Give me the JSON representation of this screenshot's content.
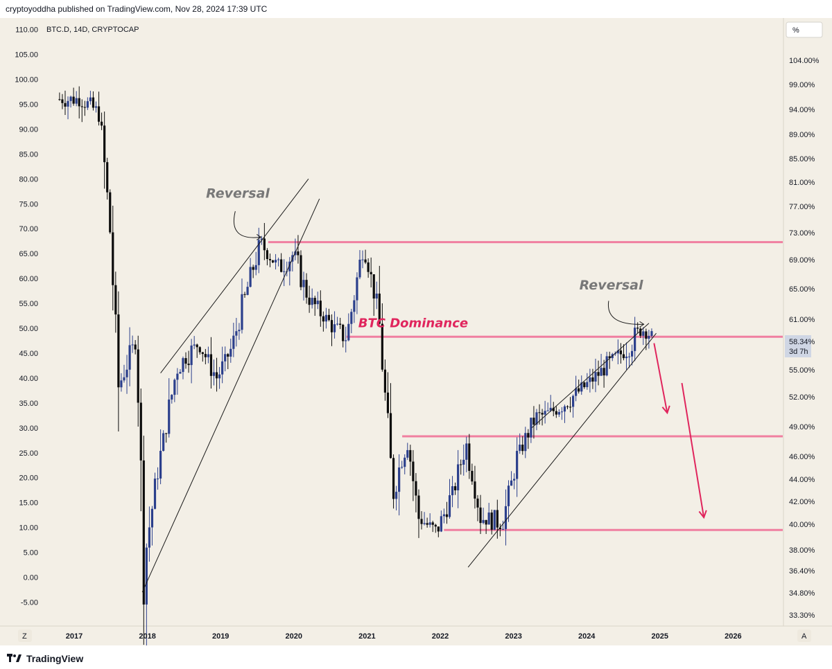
{
  "header": {
    "published": "cryptoyoddha published on TradingView.com, Nov 28, 2024 17:39 UTC"
  },
  "footer": {
    "brand": "TradingView"
  },
  "buttons": {
    "percent": "%",
    "zoom": "Z",
    "auto": "A"
  },
  "colors": {
    "background": "#f3efe6",
    "up_candle": "#2b3f8c",
    "down_candle": "#0b0b0b",
    "level_line": "#f07fa0",
    "annotation_gray": "#787878",
    "annotation_pink": "#e0255d",
    "price_tag": "#cfd6e4"
  },
  "chart_data": {
    "type": "candlestick",
    "title": "BTC.D, 14D, CRYPTOCAP",
    "x_ticks": [
      "2017",
      "2018",
      "2019",
      "2020",
      "2021",
      "2022",
      "2023",
      "2024",
      "2025",
      "2026"
    ],
    "y_left": {
      "range": [
        -8,
        112
      ],
      "ticks": [
        "-5.00",
        "0.00",
        "5.00",
        "10.00",
        "15.00",
        "20.00",
        "25.00",
        "30.00",
        "35.00",
        "40.00",
        "45.00",
        "50.00",
        "55.00",
        "60.00",
        "65.00",
        "70.00",
        "75.00",
        "80.00",
        "85.00",
        "90.00",
        "95.00",
        "100.00",
        "105.00",
        "110.00"
      ]
    },
    "y_right": {
      "ticks": [
        "104.00%",
        "99.00%",
        "94.00%",
        "89.00%",
        "85.00%",
        "81.00%",
        "77.00%",
        "73.00%",
        "69.00%",
        "65.00%",
        "61.00%",
        "55.00%",
        "52.00%",
        "49.00%",
        "46.00%",
        "44.00%",
        "42.00%",
        "40.00%",
        "38.00%",
        "36.40%",
        "34.80%",
        "33.30%"
      ]
    },
    "current": {
      "value": "58.34%",
      "countdown": "3d 7h"
    },
    "path_points": [
      [
        2016.8,
        96
      ],
      [
        2017.1,
        96
      ],
      [
        2017.35,
        93
      ],
      [
        2017.5,
        68
      ],
      [
        2017.6,
        38
      ],
      [
        2017.85,
        48
      ],
      [
        2017.95,
        3
      ],
      [
        2018.15,
        22
      ],
      [
        2018.4,
        42
      ],
      [
        2018.7,
        47
      ],
      [
        2018.95,
        40
      ],
      [
        2019.15,
        46
      ],
      [
        2019.4,
        60
      ],
      [
        2019.55,
        67
      ],
      [
        2019.8,
        62
      ],
      [
        2020.0,
        65
      ],
      [
        2020.2,
        56
      ],
      [
        2020.55,
        50
      ],
      [
        2020.72,
        48
      ],
      [
        2020.95,
        67
      ],
      [
        2021.15,
        54
      ],
      [
        2021.35,
        17
      ],
      [
        2021.55,
        28
      ],
      [
        2021.7,
        12
      ],
      [
        2021.95,
        9
      ],
      [
        2022.2,
        18
      ],
      [
        2022.35,
        27
      ],
      [
        2022.55,
        12
      ],
      [
        2022.85,
        11
      ],
      [
        2023.05,
        24
      ],
      [
        2023.3,
        32
      ],
      [
        2023.5,
        33
      ],
      [
        2023.7,
        35
      ],
      [
        2023.95,
        38
      ],
      [
        2024.25,
        42
      ],
      [
        2024.55,
        46
      ],
      [
        2024.75,
        50
      ],
      [
        2024.85,
        49
      ],
      [
        2024.9,
        48
      ]
    ],
    "levels": [
      {
        "value": 67.3,
        "from": 2019.65,
        "to": 2026.75
      },
      {
        "value": 48.3,
        "from": 2020.72,
        "to": 2026.75
      },
      {
        "value": 28.3,
        "from": 2021.48,
        "to": 2026.75
      },
      {
        "value": 9.5,
        "from": 2022.05,
        "to": 2026.75
      }
    ],
    "trendlines": [
      {
        "from": [
          2018.18,
          41
        ],
        "to": [
          2020.2,
          80
        ]
      },
      {
        "from": [
          2017.93,
          -3
        ],
        "to": [
          2020.35,
          76
        ]
      },
      {
        "from": [
          2022.38,
          2
        ],
        "to": [
          2024.95,
          49
        ]
      },
      {
        "from": [
          2023.25,
          30
        ],
        "to": [
          2024.85,
          51
        ]
      }
    ],
    "annotations": [
      {
        "text": "Reversal",
        "x": 2018.8,
        "y": 76.2,
        "color": "gray"
      },
      {
        "text": "Reversal",
        "x": 2023.9,
        "y": 57.8,
        "color": "gray"
      },
      {
        "text": "BTC Dominance",
        "x": 2020.88,
        "y": 50.2,
        "color": "pink"
      }
    ],
    "arrows": [
      {
        "from": [
          2024.92,
          47
        ],
        "to": [
          2025.1,
          33
        ],
        "color": "pink"
      },
      {
        "from": [
          2025.3,
          39
        ],
        "to": [
          2025.6,
          12
        ],
        "color": "pink"
      }
    ],
    "curved_arrows": [
      {
        "from": [
          2019.2,
          73.5
        ],
        "ctrl": [
          2019.1,
          67.5
        ],
        "to": [
          2019.55,
          68.3
        ]
      },
      {
        "from": [
          2024.3,
          55.5
        ],
        "ctrl": [
          2024.25,
          50.5
        ],
        "to": [
          2024.78,
          50.8
        ]
      }
    ]
  }
}
